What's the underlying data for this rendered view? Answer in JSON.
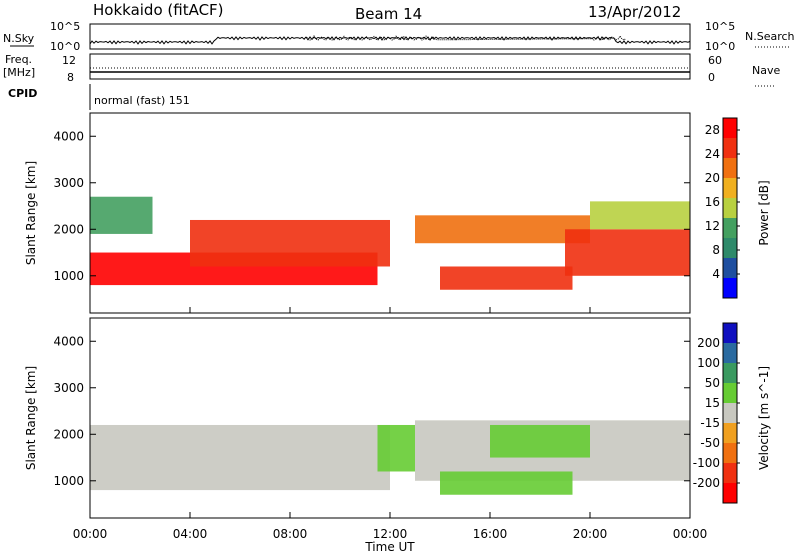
{
  "header": {
    "station": "Hokkaido (fitACF)",
    "beam": "Beam 14",
    "date": "13/Apr/2012"
  },
  "top_panels": {
    "nsky_label": "N.Sky",
    "nsearch_label": "N.Search",
    "nsky_ticks": [
      "10^5",
      "10^0"
    ],
    "nsky_right_ticks": [
      "10^5",
      "10^0"
    ],
    "freq_label_line1": "Freq.",
    "freq_label_line2": "[MHz]",
    "freq_ticks": [
      "12",
      "8"
    ],
    "nave_label": "Nave",
    "nave_ticks": [
      "60",
      "0"
    ],
    "cpid_label": "CPID",
    "cpid_value": "normal (fast) 151"
  },
  "colors": {
    "power_scale": [
      "#0000ff",
      "#1f4fa0",
      "#2e8a6a",
      "#44a060",
      "#b8d040",
      "#f0b020",
      "#f07010",
      "#f03010",
      "#ff0000"
    ],
    "velocity_scale": [
      "#1010c0",
      "#2a6aa0",
      "#3a9a60",
      "#66cc33",
      "#c8c8c0",
      "#f0a020",
      "#f07010",
      "#f03010",
      "#ff0000"
    ],
    "gray": "#c8c8c0"
  },
  "chart_data": [
    {
      "type": "heatmap",
      "quantity": "Power",
      "ylabel": "Slant Range [km]",
      "xlabel": "",
      "x_range_hours": [
        0,
        24
      ],
      "ylim": [
        200,
        4500
      ],
      "yticks": [
        1000,
        2000,
        3000,
        4000
      ],
      "colorbar_label": "Power [dB]",
      "colorbar_ticks": [
        4,
        8,
        12,
        16,
        20,
        24,
        28
      ],
      "colorbar_range": [
        0,
        30
      ],
      "features": [
        {
          "start_hour": 0.0,
          "end_hour": 11.5,
          "range_low_km": 800,
          "range_high_km": 1500,
          "level_db": 28
        },
        {
          "start_hour": 4.0,
          "end_hour": 12.0,
          "range_low_km": 1200,
          "range_high_km": 2200,
          "level_db": 24
        },
        {
          "start_hour": 13.0,
          "end_hour": 20.0,
          "range_low_km": 1700,
          "range_high_km": 2300,
          "level_db": 22
        },
        {
          "start_hour": 14.0,
          "end_hour": 19.3,
          "range_low_km": 700,
          "range_high_km": 1200,
          "level_db": 26
        },
        {
          "start_hour": 19.0,
          "end_hour": 24.0,
          "range_low_km": 1000,
          "range_high_km": 2000,
          "level_db": 24
        },
        {
          "start_hour": 0.0,
          "end_hour": 2.5,
          "range_low_km": 1900,
          "range_high_km": 2700,
          "level_db": 10
        },
        {
          "start_hour": 20.0,
          "end_hour": 24.0,
          "range_low_km": 2000,
          "range_high_km": 2600,
          "level_db": 14
        }
      ]
    },
    {
      "type": "heatmap",
      "quantity": "Velocity",
      "ylabel": "Slant Range [km]",
      "xlabel": "Time UT",
      "x_range_hours": [
        0,
        24
      ],
      "xticks": [
        "00:00",
        "04:00",
        "08:00",
        "12:00",
        "16:00",
        "20:00",
        "00:00"
      ],
      "ylim": [
        200,
        4500
      ],
      "yticks": [
        1000,
        2000,
        3000,
        4000
      ],
      "colorbar_label": "Velocity [m s^-1]",
      "colorbar_ticks": [
        200,
        100,
        50,
        15,
        -15,
        -50,
        -100,
        -200
      ],
      "features": [
        {
          "start_hour": 0.0,
          "end_hour": 12.0,
          "range_low_km": 800,
          "range_high_km": 2200,
          "velocity_ms": 0
        },
        {
          "start_hour": 13.0,
          "end_hour": 24.0,
          "range_low_km": 1000,
          "range_high_km": 2300,
          "velocity_ms": 0
        },
        {
          "start_hour": 14.0,
          "end_hour": 19.3,
          "range_low_km": 700,
          "range_high_km": 1200,
          "velocity_ms": 40
        },
        {
          "start_hour": 16.0,
          "end_hour": 20.0,
          "range_low_km": 1500,
          "range_high_km": 2200,
          "velocity_ms": 40
        },
        {
          "start_hour": 11.5,
          "end_hour": 13.0,
          "range_low_km": 1200,
          "range_high_km": 2200,
          "velocity_ms": 40
        }
      ]
    }
  ]
}
